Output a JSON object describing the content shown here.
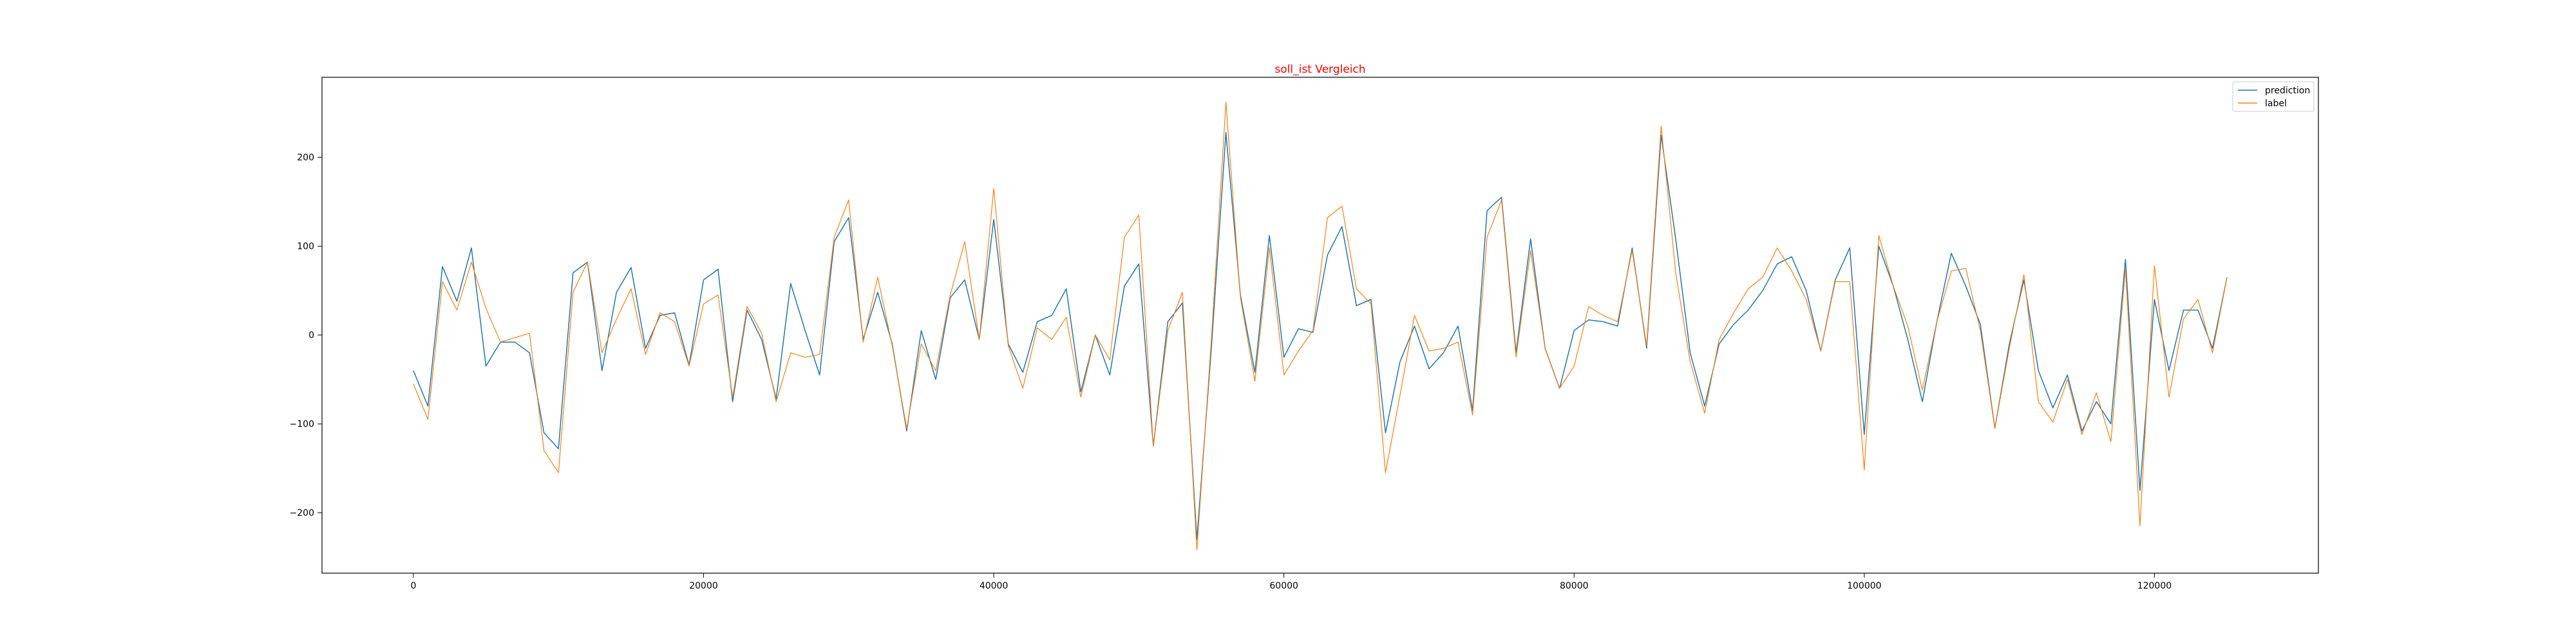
{
  "chart_data": {
    "type": "line",
    "title": "soll_ist Vergleich",
    "title_color": "#ff0000",
    "xlabel": "",
    "ylabel": "",
    "xlim": [
      -6300,
      131300
    ],
    "ylim": [
      -268,
      290
    ],
    "xticks": [
      0,
      20000,
      40000,
      60000,
      80000,
      100000,
      120000
    ],
    "xtick_labels": [
      "0",
      "20000",
      "40000",
      "60000",
      "80000",
      "100000",
      "120000"
    ],
    "yticks": [
      -200,
      -100,
      0,
      100,
      200
    ],
    "ytick_labels": [
      "−200",
      "−100",
      "0",
      "100",
      "200"
    ],
    "grid": false,
    "legend_position": "top-right",
    "x": [
      0,
      1000,
      2000,
      3000,
      4000,
      5000,
      6000,
      7000,
      8000,
      9000,
      10000,
      11000,
      12000,
      13000,
      14000,
      15000,
      16000,
      17000,
      18000,
      19000,
      20000,
      21000,
      22000,
      23000,
      24000,
      25000,
      26000,
      27000,
      28000,
      29000,
      30000,
      31000,
      32000,
      33000,
      34000,
      35000,
      36000,
      37000,
      38000,
      39000,
      40000,
      41000,
      42000,
      43000,
      44000,
      45000,
      46000,
      47000,
      48000,
      49000,
      50000,
      51000,
      52000,
      53000,
      54000,
      55000,
      56000,
      57000,
      58000,
      59000,
      60000,
      61000,
      62000,
      63000,
      64000,
      65000,
      66000,
      67000,
      68000,
      69000,
      70000,
      71000,
      72000,
      73000,
      74000,
      75000,
      76000,
      77000,
      78000,
      79000,
      80000,
      81000,
      82000,
      83000,
      84000,
      85000,
      86000,
      87000,
      88000,
      89000,
      90000,
      91000,
      92000,
      93000,
      94000,
      95000,
      96000,
      97000,
      98000,
      99000,
      100000,
      101000,
      102000,
      103000,
      104000,
      105000,
      106000,
      107000,
      108000,
      109000,
      110000,
      111000,
      112000,
      113000,
      114000,
      115000,
      116000,
      117000,
      118000,
      119000,
      120000,
      121000,
      122000,
      123000,
      124000,
      125000
    ],
    "series": [
      {
        "name": "prediction",
        "color": "#1f77b4",
        "values": [
          -40,
          -80,
          77,
          38,
          98,
          -35,
          -8,
          -8,
          -20,
          -110,
          -128,
          70,
          82,
          -40,
          48,
          76,
          -15,
          22,
          25,
          -34,
          62,
          74,
          -75,
          28,
          -5,
          -72,
          58,
          5,
          -45,
          105,
          132,
          -5,
          48,
          -10,
          -108,
          5,
          -50,
          42,
          62,
          -5,
          130,
          -10,
          -42,
          15,
          22,
          52,
          -64,
          0,
          -45,
          55,
          80,
          -125,
          15,
          36,
          -230,
          -15,
          228,
          45,
          -42,
          112,
          -25,
          7,
          3,
          90,
          122,
          33,
          40,
          -110,
          -30,
          10,
          -38,
          -20,
          10,
          -85,
          140,
          155,
          -20,
          108,
          -15,
          -60,
          5,
          17,
          15,
          10,
          98,
          -15,
          225,
          108,
          -20,
          -80,
          -10,
          12,
          28,
          50,
          80,
          88,
          50,
          -18,
          62,
          98,
          -112,
          100,
          55,
          -5,
          -75,
          15,
          92,
          55,
          12,
          -105,
          -10,
          62,
          -40,
          -82,
          -45,
          -108,
          -75,
          -100,
          85,
          -175,
          40,
          -40,
          28,
          28,
          -15,
          65
        ],
        "line_width": 1.5
      },
      {
        "name": "label",
        "color": "#ff7f0e",
        "values": [
          -55,
          -95,
          60,
          28,
          82,
          30,
          -8,
          -3,
          2,
          -130,
          -155,
          48,
          82,
          -20,
          18,
          52,
          -22,
          25,
          15,
          -35,
          35,
          45,
          -70,
          32,
          2,
          -75,
          -20,
          -25,
          -22,
          110,
          152,
          -8,
          65,
          -12,
          -105,
          -10,
          -40,
          45,
          105,
          -5,
          165,
          -12,
          -60,
          8,
          -5,
          20,
          -70,
          0,
          -28,
          110,
          135,
          -125,
          5,
          48,
          -242,
          -5,
          262,
          42,
          -52,
          98,
          -45,
          -18,
          5,
          132,
          145,
          52,
          35,
          -155,
          -68,
          22,
          -18,
          -15,
          -8,
          -90,
          110,
          152,
          -25,
          95,
          -15,
          -60,
          -35,
          32,
          22,
          15,
          95,
          -12,
          235,
          70,
          -30,
          -88,
          -5,
          25,
          52,
          65,
          98,
          72,
          40,
          -18,
          60,
          60,
          -152,
          112,
          55,
          10,
          -62,
          15,
          72,
          75,
          5,
          -105,
          -15,
          68,
          -75,
          -98,
          -50,
          -112,
          -65,
          -120,
          75,
          -215,
          78,
          -70,
          18,
          40,
          -20,
          65
        ],
        "line_width": 1.2
      }
    ]
  }
}
